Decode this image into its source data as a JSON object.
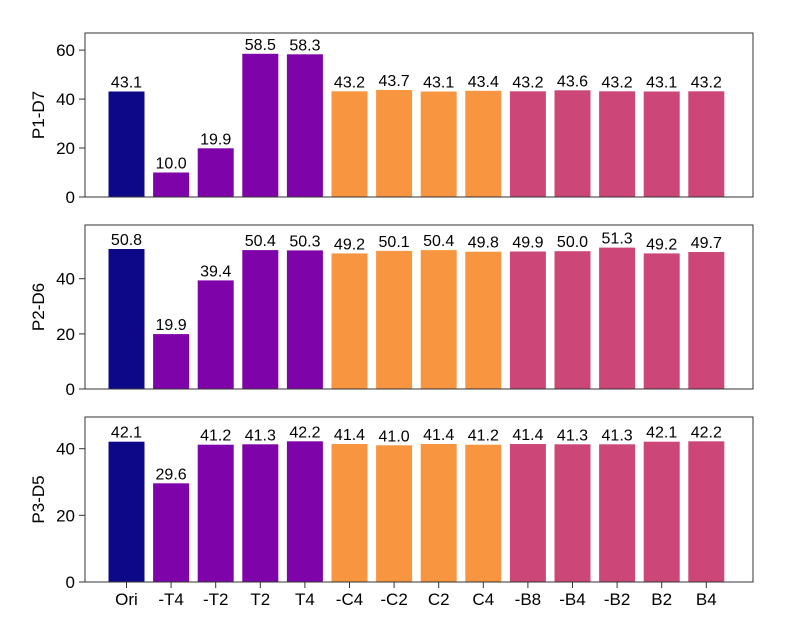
{
  "chart_data": [
    {
      "type": "bar",
      "ylabel": "P1-D7",
      "ylim": [
        0,
        67
      ],
      "yticks": [
        0,
        20,
        40,
        60
      ],
      "categories": [
        "Ori",
        "-T4",
        "-T2",
        "T2",
        "T4",
        "-C4",
        "-C2",
        "C2",
        "C4",
        "-B8",
        "-B4",
        "-B2",
        "B2",
        "B4"
      ],
      "values": [
        43.1,
        10.0,
        19.9,
        58.5,
        58.3,
        43.2,
        43.7,
        43.1,
        43.4,
        43.2,
        43.6,
        43.2,
        43.1,
        43.2
      ],
      "labels": [
        "43.1",
        "10.0",
        "19.9",
        "58.5",
        "58.3",
        "43.2",
        "43.7",
        "43.1",
        "43.4",
        "43.2",
        "43.6",
        "43.2",
        "43.1",
        "43.2"
      ],
      "show_xticklabels": false
    },
    {
      "type": "bar",
      "ylabel": "P2-D6",
      "ylim": [
        0,
        59.5
      ],
      "yticks": [
        0,
        20,
        40
      ],
      "categories": [
        "Ori",
        "-T4",
        "-T2",
        "T2",
        "T4",
        "-C4",
        "-C2",
        "C2",
        "C4",
        "-B8",
        "-B4",
        "-B2",
        "B2",
        "B4"
      ],
      "values": [
        50.8,
        19.9,
        39.4,
        50.4,
        50.3,
        49.2,
        50.1,
        50.4,
        49.8,
        49.9,
        50.0,
        51.3,
        49.2,
        49.7
      ],
      "labels": [
        "50.8",
        "19.9",
        "39.4",
        "50.4",
        "50.3",
        "49.2",
        "50.1",
        "50.4",
        "49.8",
        "49.9",
        "50.0",
        "51.3",
        "49.2",
        "49.7"
      ],
      "show_xticklabels": false
    },
    {
      "type": "bar",
      "ylabel": "P3-D5",
      "ylim": [
        0,
        49.5
      ],
      "yticks": [
        0,
        20,
        40
      ],
      "categories": [
        "Ori",
        "-T4",
        "-T2",
        "T2",
        "T4",
        "-C4",
        "-C2",
        "C2",
        "C4",
        "-B8",
        "-B4",
        "-B2",
        "B2",
        "B4"
      ],
      "values": [
        42.1,
        29.6,
        41.2,
        41.3,
        42.2,
        41.4,
        41.0,
        41.4,
        41.2,
        41.4,
        41.3,
        41.3,
        42.1,
        42.2
      ],
      "labels": [
        "42.1",
        "29.6",
        "41.2",
        "41.3",
        "42.2",
        "41.4",
        "41.0",
        "41.4",
        "41.2",
        "41.4",
        "41.3",
        "41.3",
        "42.1",
        "42.2"
      ],
      "show_xticklabels": true
    }
  ],
  "colors": {
    "original": "#0d0887",
    "temporal": "#7e03a8",
    "channel": "#f89540",
    "band": "#cc4778"
  },
  "bar_color_groups": [
    "original",
    "temporal",
    "temporal",
    "temporal",
    "temporal",
    "channel",
    "channel",
    "channel",
    "channel",
    "band",
    "band",
    "band",
    "band",
    "band"
  ]
}
